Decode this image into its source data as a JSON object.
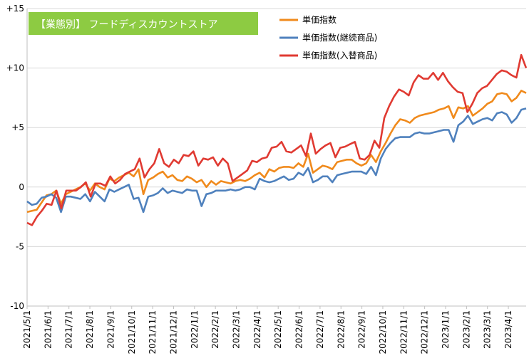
{
  "chart_data": {
    "type": "line",
    "title": "【業態別】 フードディスカウントストア",
    "xlabel": "",
    "ylabel": "",
    "ylim": [
      -10,
      15
    ],
    "yticks": [
      {
        "value": -10,
        "label": "-10"
      },
      {
        "value": -5,
        "label": "-5"
      },
      {
        "value": 0,
        "label": "0"
      },
      {
        "value": 5,
        "label": "+5"
      },
      {
        "value": 10,
        "label": "+10"
      },
      {
        "value": 15,
        "label": "+15"
      }
    ],
    "x_ticks": [
      "2021/5/1",
      "2021/6/1",
      "2021/7/1",
      "2021/8/1",
      "2021/9/1",
      "2021/10/1",
      "2021/11/1",
      "2021/12/1",
      "2022/1/1",
      "2022/2/1",
      "2022/3/1",
      "2022/4/1",
      "2022/5/1",
      "2022/6/1",
      "2022/7/1",
      "2022/8/1",
      "2022/9/1",
      "2022/10/1",
      "2022/11/1",
      "2022/12/1",
      "2023/1/1",
      "2023/2/1",
      "2023/3/1",
      "2023/4/1"
    ],
    "grid": true,
    "legend_position": "top-right",
    "series": [
      {
        "name": "単価指数",
        "color": "#F08A1C",
        "values": [
          -2.1,
          -2.0,
          -1.9,
          -1.3,
          -0.7,
          -0.6,
          -0.3,
          -1.4,
          -0.6,
          -0.4,
          -0.2,
          0.0,
          0.3,
          -0.3,
          0.3,
          0.0,
          -0.2,
          0.7,
          0.5,
          0.8,
          1.0,
          1.2,
          0.9,
          1.5,
          -0.6,
          0.6,
          0.8,
          1.1,
          1.3,
          0.8,
          1.0,
          0.6,
          0.5,
          0.9,
          0.7,
          0.4,
          0.6,
          0.0,
          0.5,
          0.2,
          0.5,
          0.4,
          0.3,
          0.5,
          0.6,
          0.5,
          0.7,
          1.0,
          1.2,
          0.8,
          1.5,
          1.3,
          1.6,
          1.7,
          1.7,
          1.6,
          2.0,
          1.7,
          2.8,
          1.2,
          1.5,
          1.8,
          1.7,
          1.5,
          2.1,
          2.2,
          2.3,
          2.3,
          2.0,
          1.8,
          2.0,
          2.7,
          2.1,
          3.0,
          3.7,
          4.5,
          5.2,
          5.7,
          5.6,
          5.4,
          5.8,
          6.0,
          6.1,
          6.2,
          6.3,
          6.5,
          6.6,
          6.8,
          5.8,
          6.7,
          6.6,
          6.8,
          6.0,
          6.3,
          6.6,
          7.0,
          7.2,
          7.8,
          7.9,
          7.8,
          7.2,
          7.5,
          8.1,
          7.9
        ]
      },
      {
        "name": "単価指数(継続商品)",
        "color": "#4F81BD",
        "values": [
          -1.2,
          -1.5,
          -1.4,
          -0.9,
          -0.8,
          -0.6,
          -0.9,
          -2.1,
          -0.8,
          -0.8,
          -0.9,
          -1.0,
          -0.6,
          -1.2,
          -0.4,
          -0.8,
          -1.2,
          -0.2,
          -0.4,
          -0.2,
          0.0,
          0.2,
          -1.0,
          -0.9,
          -2.1,
          -0.8,
          -0.7,
          -0.5,
          -0.1,
          -0.5,
          -0.3,
          -0.4,
          -0.5,
          -0.2,
          -0.3,
          -0.3,
          -1.6,
          -0.6,
          -0.5,
          -0.3,
          -0.3,
          -0.3,
          -0.2,
          -0.3,
          -0.2,
          0.0,
          0.0,
          -0.2,
          0.7,
          0.5,
          0.4,
          0.5,
          0.7,
          0.9,
          0.6,
          0.7,
          1.2,
          1.0,
          1.6,
          0.4,
          0.6,
          0.9,
          0.9,
          0.4,
          1.0,
          1.1,
          1.2,
          1.3,
          1.3,
          1.3,
          1.1,
          1.7,
          1.0,
          2.4,
          3.2,
          3.7,
          4.1,
          4.2,
          4.2,
          4.2,
          4.5,
          4.6,
          4.5,
          4.5,
          4.6,
          4.7,
          4.8,
          4.8,
          3.8,
          5.2,
          5.5,
          6.0,
          5.3,
          5.5,
          5.7,
          5.8,
          5.6,
          6.2,
          6.3,
          6.1,
          5.4,
          5.8,
          6.5,
          6.6
        ]
      },
      {
        "name": "単価指数(入替商品)",
        "color": "#E03A32",
        "values": [
          -3.0,
          -3.2,
          -2.5,
          -2.0,
          -1.4,
          -1.5,
          -0.3,
          -1.8,
          -0.3,
          -0.3,
          -0.3,
          0.0,
          0.4,
          -0.8,
          0.3,
          0.3,
          0.1,
          0.9,
          0.3,
          0.6,
          1.1,
          1.3,
          1.5,
          2.4,
          0.8,
          1.5,
          2.0,
          3.2,
          2.0,
          1.7,
          2.3,
          2.0,
          2.7,
          2.6,
          3.0,
          1.8,
          2.4,
          2.3,
          2.5,
          1.8,
          2.4,
          2.0,
          0.5,
          0.8,
          1.1,
          1.4,
          2.2,
          2.1,
          2.4,
          2.5,
          3.3,
          3.4,
          3.8,
          3.0,
          2.9,
          3.2,
          3.5,
          2.6,
          4.5,
          2.8,
          3.2,
          3.5,
          3.7,
          2.5,
          3.3,
          3.4,
          3.6,
          3.8,
          2.4,
          2.3,
          2.7,
          3.9,
          3.3,
          5.8,
          6.8,
          7.6,
          8.2,
          8.0,
          7.7,
          8.8,
          9.4,
          9.1,
          9.1,
          9.6,
          9.0,
          9.6,
          8.9,
          8.4,
          8.0,
          7.9,
          6.3,
          7.0,
          7.9,
          8.3,
          8.5,
          9.0,
          9.5,
          9.8,
          9.7,
          9.4,
          9.2,
          11.1,
          10.0
        ]
      }
    ]
  }
}
